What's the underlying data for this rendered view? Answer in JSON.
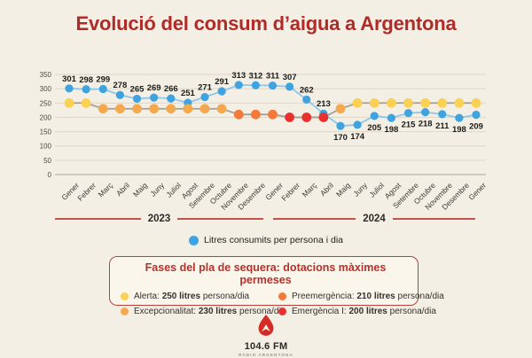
{
  "title": "Evolució del consum d’aigua a Argentona",
  "colors": {
    "background": "#f4efe4",
    "title_red": "#b02b28",
    "consumption_blue": "#3fa3e0",
    "consumption_line": "#8cc7ec",
    "phase_connector_gray": "#a59f94",
    "grid_line": "#ddd6c8",
    "zero_line": "#b9b3a6",
    "year_divider": "#c0544b",
    "box_border": "#b5433c",
    "box_background": "#faf6eb",
    "logo_red": "#d42b26"
  },
  "chart_data": {
    "type": "line",
    "title": "Evolució del consum d’aigua a Argentona",
    "xlabel": "",
    "ylabel": "",
    "ylim": [
      0,
      350
    ],
    "yticks": [
      0,
      50,
      100,
      150,
      200,
      250,
      300,
      350
    ],
    "grid": true,
    "x": [
      "Gener",
      "Febrer",
      "Març",
      "Abril",
      "Maig",
      "Juny",
      "Juliol",
      "Agost",
      "Setembre",
      "Octubre",
      "Novembre",
      "Desembre",
      "Gener",
      "Febrer",
      "Març",
      "Abril",
      "Maig",
      "Juny",
      "Juliol",
      "Agost",
      "Setembre",
      "Octubre",
      "Novembre",
      "Desembre",
      "Gener"
    ],
    "year_groups": [
      {
        "label": "2023",
        "from_index": 0,
        "to_index": 11
      },
      {
        "label": "2024",
        "from_index": 12,
        "to_index": 23
      }
    ],
    "series": [
      {
        "name": "Litres consumits per persona i dia",
        "color": "#3fa3e0",
        "line_color": "#8cc7ec",
        "values": [
          301,
          298,
          299,
          278,
          265,
          269,
          266,
          251,
          271,
          291,
          313,
          312,
          311,
          307,
          262,
          213,
          170,
          174,
          205,
          198,
          215,
          218,
          211,
          198,
          209
        ],
        "labels_shown": true
      },
      {
        "name": "Fases del pla de sequera (dotació màxima permesa)",
        "line_color": "#a59f94",
        "values": [
          250,
          250,
          230,
          230,
          230,
          230,
          230,
          230,
          230,
          230,
          210,
          210,
          210,
          200,
          200,
          200,
          230,
          250,
          250,
          250,
          250,
          250,
          250,
          250,
          250
        ],
        "phases": [
          "alerta",
          "alerta",
          "excepcionalitat",
          "excepcionalitat",
          "excepcionalitat",
          "excepcionalitat",
          "excepcionalitat",
          "excepcionalitat",
          "excepcionalitat",
          "excepcionalitat",
          "preemergencia",
          "preemergencia",
          "preemergencia",
          "emergencia",
          "emergencia",
          "emergencia",
          "excepcionalitat",
          "alerta",
          "alerta",
          "alerta",
          "alerta",
          "alerta",
          "alerta",
          "alerta",
          "alerta"
        ],
        "labels_shown": false
      }
    ],
    "phase_palette": {
      "alerta": "#fbd155",
      "excepcionalitat": "#f5a94e",
      "preemergencia": "#f4793b",
      "emergencia": "#e8312e"
    },
    "series_label": "Litres consumits per persona i dia"
  },
  "phases_box": {
    "title": "Fases del pla de sequera: dotacions màximes permeses",
    "items": [
      {
        "key": "alerta",
        "label": "Alerta:",
        "amount": "250 litres",
        "unit": "persona/dia",
        "color": "#fbd155"
      },
      {
        "key": "excepcionalitat",
        "label": "Excepcionalitat:",
        "amount": "230 litres",
        "unit": "persona/dia",
        "color": "#f5a94e"
      },
      {
        "key": "preemergencia",
        "label": "Preemergència:",
        "amount": "210 litres",
        "unit": "persona/dia",
        "color": "#f4793b"
      },
      {
        "key": "emergencia",
        "label": "Emergència I:",
        "amount": "200 litres",
        "unit": "persona/dia",
        "color": "#e8312e"
      }
    ]
  },
  "footer": {
    "station": "104.6 FM",
    "station_sub": "RÀDIO ARGENTONA"
  }
}
